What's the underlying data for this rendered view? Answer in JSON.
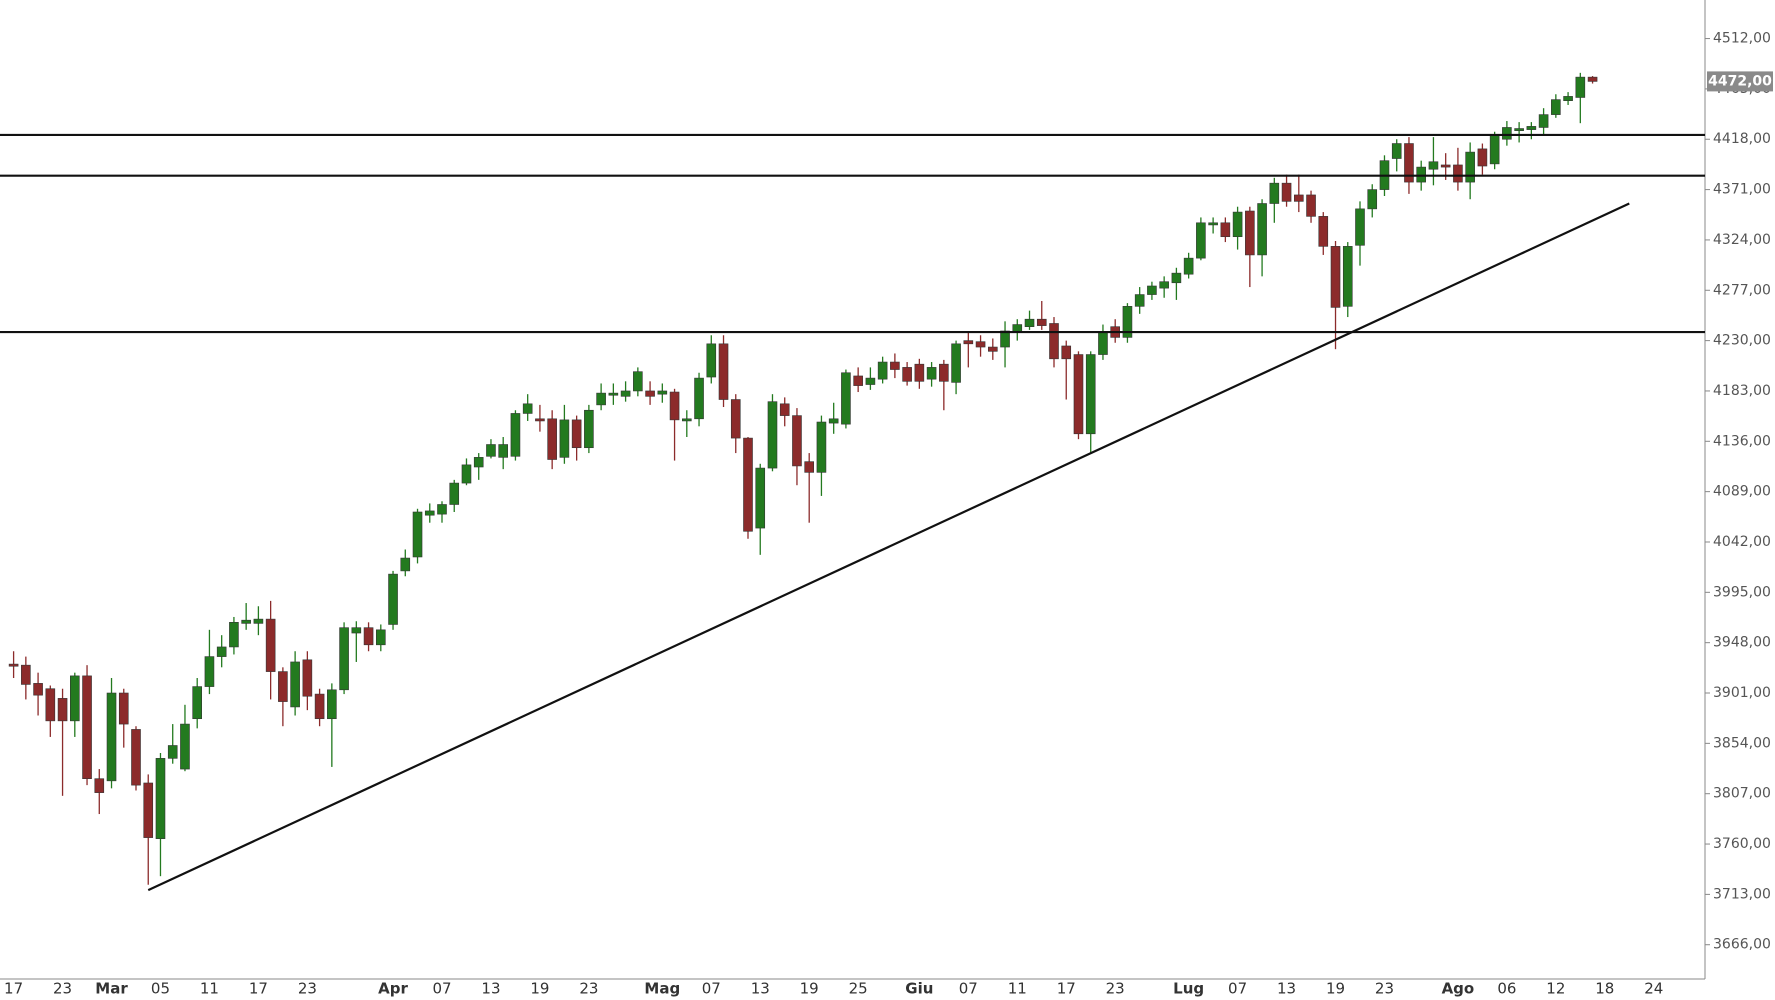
{
  "chart_data": {
    "type": "candlestick",
    "categories": [
      "17",
      null,
      null,
      null,
      "23",
      null,
      null,
      null,
      "Mar",
      null,
      null,
      null,
      "05",
      null,
      null,
      null,
      "11",
      null,
      null,
      null,
      "17",
      null,
      null,
      null,
      "23",
      null,
      null,
      null,
      null,
      null,
      null,
      "Apr",
      null,
      null,
      null,
      "07",
      null,
      null,
      null,
      "13",
      null,
      null,
      null,
      "19",
      null,
      null,
      null,
      "23",
      null,
      null,
      null,
      null,
      null,
      "Mag",
      null,
      null,
      null,
      "07",
      null,
      null,
      null,
      "13",
      null,
      null,
      null,
      "19",
      null,
      null,
      null,
      "25",
      null,
      null,
      null,
      null,
      "Giu",
      null,
      null,
      null,
      "07",
      null,
      null,
      null,
      "11",
      null,
      null,
      null,
      "17",
      null,
      null,
      null,
      "23",
      null,
      null,
      null,
      null,
      null,
      "Lug",
      null,
      null,
      null,
      "07",
      null,
      null,
      null,
      "13",
      null,
      null,
      null,
      "19",
      null,
      null,
      null,
      "23",
      null,
      null,
      null,
      null,
      null,
      "Ago",
      null,
      null,
      null,
      "06",
      null,
      null,
      null,
      "12",
      null,
      null,
      null,
      "18",
      null,
      null,
      null,
      "24"
    ],
    "open": [
      3928,
      3927,
      3910,
      3905,
      3896,
      3875,
      3917,
      3821,
      3819,
      3901,
      3867,
      3817,
      3765,
      3840,
      3830,
      3877,
      3907,
      3935,
      3944,
      3966,
      3966,
      3970,
      3921,
      3888,
      3932,
      3900,
      3877,
      3904,
      3957,
      3962,
      3946,
      3965,
      4015,
      4028,
      4067,
      4068,
      4077,
      4097,
      4112,
      4122,
      4121,
      4122,
      4162,
      4157,
      4157,
      4121,
      4156,
      4130,
      4170,
      4179,
      4178,
      4183,
      4183,
      4180,
      4182,
      4155,
      4157,
      4196,
      4227,
      4175,
      4139,
      4055,
      4111,
      4171,
      4160,
      4117,
      4107,
      4153,
      4152,
      4197,
      4189,
      4194,
      4210,
      4205,
      4208,
      4194,
      4208,
      4191,
      4230,
      4229,
      4224,
      4224,
      4238,
      4243,
      4250,
      4246,
      4225,
      4217,
      4143,
      4217,
      4243,
      4233,
      4262,
      4273,
      4279,
      4284,
      4292,
      4307,
      4338,
      4340,
      4327,
      4351,
      4310,
      4358,
      4377,
      4366,
      4366,
      4346,
      4318,
      4262,
      4319,
      4353,
      4371,
      4400,
      4414,
      4378,
      4390,
      4394,
      4394,
      4378,
      4409,
      4395,
      4418,
      4426,
      4427,
      4429,
      4441,
      4454,
      4457,
      4476,
      null,
      null,
      null,
      null,
      null
    ],
    "high": [
      3940,
      3935,
      3920,
      3908,
      3905,
      3920,
      3927,
      3830,
      3915,
      3905,
      3870,
      3825,
      3845,
      3872,
      3890,
      3915,
      3960,
      3955,
      3972,
      3985,
      3982,
      3987,
      3925,
      3940,
      3940,
      3905,
      3910,
      3967,
      3968,
      3967,
      3965,
      4015,
      4035,
      4073,
      4078,
      4080,
      4100,
      4120,
      4125,
      4138,
      4140,
      4165,
      4180,
      4170,
      4165,
      4170,
      4160,
      4170,
      4190,
      4190,
      4192,
      4205,
      4192,
      4190,
      4185,
      4165,
      4200,
      4235,
      4235,
      4180,
      4140,
      4115,
      4180,
      4177,
      4167,
      4125,
      4160,
      4172,
      4203,
      4205,
      4205,
      4215,
      4218,
      4210,
      4213,
      4210,
      4212,
      4230,
      4238,
      4235,
      4232,
      4248,
      4250,
      4258,
      4267,
      4252,
      4230,
      4220,
      4220,
      4245,
      4250,
      4265,
      4280,
      4285,
      4290,
      4298,
      4312,
      4345,
      4345,
      4345,
      4355,
      4355,
      4362,
      4382,
      4385,
      4385,
      4370,
      4350,
      4323,
      4322,
      4360,
      4376,
      4403,
      4418,
      4420,
      4398,
      4420,
      4405,
      4410,
      4415,
      4414,
      4425,
      4435,
      4434,
      4434,
      4447,
      4460,
      4462,
      4480,
      4477,
      null,
      null,
      null,
      null,
      null
    ],
    "low": [
      3915,
      3895,
      3880,
      3860,
      3805,
      3860,
      3815,
      3788,
      3812,
      3850,
      3810,
      3722,
      3730,
      3835,
      3828,
      3868,
      3900,
      3925,
      3937,
      3960,
      3955,
      3895,
      3870,
      3880,
      3885,
      3870,
      3832,
      3900,
      3930,
      3940,
      3940,
      3960,
      4010,
      4022,
      4060,
      4060,
      4070,
      4095,
      4100,
      4120,
      4110,
      4118,
      4155,
      4145,
      4110,
      4115,
      4118,
      4125,
      4165,
      4170,
      4173,
      4178,
      4170,
      4172,
      4118,
      4140,
      4150,
      4190,
      4168,
      4125,
      4045,
      4030,
      4108,
      4150,
      4095,
      4060,
      4085,
      4143,
      4148,
      4182,
      4184,
      4190,
      4195,
      4188,
      4185,
      4187,
      4165,
      4180,
      4205,
      4215,
      4212,
      4205,
      4230,
      4240,
      4240,
      4205,
      4175,
      4138,
      4125,
      4212,
      4228,
      4228,
      4255,
      4268,
      4270,
      4268,
      4288,
      4305,
      4330,
      4322,
      4315,
      4280,
      4290,
      4340,
      4355,
      4350,
      4340,
      4310,
      4222,
      4252,
      4300,
      4345,
      4365,
      4388,
      4367,
      4370,
      4375,
      4380,
      4370,
      4362,
      4385,
      4390,
      4412,
      4415,
      4418,
      4422,
      4438,
      4450,
      4433,
      4470,
      null,
      null,
      null,
      null,
      null
    ],
    "close": [
      3926,
      3909,
      3899,
      3875,
      3875,
      3917,
      3821,
      3808,
      3901,
      3872,
      3815,
      3766,
      3840,
      3852,
      3872,
      3907,
      3935,
      3944,
      3967,
      3969,
      3970,
      3921,
      3893,
      3930,
      3898,
      3877,
      3904,
      3962,
      3962,
      3946,
      3960,
      4012,
      4027,
      4070,
      4071,
      4077,
      4097,
      4114,
      4121,
      4133,
      4133,
      4162,
      4171,
      4155,
      4119,
      4156,
      4130,
      4165,
      4181,
      4181,
      4183,
      4201,
      4178,
      4183,
      4156,
      4157,
      4195,
      4227,
      4175,
      4139,
      4052,
      4111,
      4173,
      4160,
      4113,
      4107,
      4154,
      4157,
      4200,
      4188,
      4195,
      4210,
      4203,
      4192,
      4192,
      4205,
      4192,
      4227,
      4227,
      4224,
      4220,
      4239,
      4245,
      4250,
      4244,
      4213,
      4213,
      4143,
      4217,
      4238,
      4233,
      4262,
      4273,
      4281,
      4285,
      4293,
      4307,
      4340,
      4340,
      4327,
      4350,
      4310,
      4358,
      4377,
      4360,
      4360,
      4346,
      4318,
      4261,
      4318,
      4353,
      4371,
      4398,
      4414,
      4378,
      4392,
      4397,
      4392,
      4378,
      4406,
      4393,
      4422,
      4429,
      4428,
      4430,
      4441,
      4455,
      4458,
      4476,
      4472,
      null,
      null,
      null,
      null,
      null
    ],
    "up_color": "#237a1f",
    "down_color": "#8c2b2b",
    "ylim": [
      3634,
      4548
    ],
    "yticks": [
      {
        "value": 3666,
        "label": "3666,00"
      },
      {
        "value": 3713,
        "label": "3713,00"
      },
      {
        "value": 3760,
        "label": "3760,00"
      },
      {
        "value": 3807,
        "label": "3807,00"
      },
      {
        "value": 3854,
        "label": "3854,00"
      },
      {
        "value": 3901,
        "label": "3901,00"
      },
      {
        "value": 3948,
        "label": "3948,00"
      },
      {
        "value": 3995,
        "label": "3995,00"
      },
      {
        "value": 4042,
        "label": "4042,00"
      },
      {
        "value": 4089,
        "label": "4089,00"
      },
      {
        "value": 4136,
        "label": "4136,00"
      },
      {
        "value": 4183,
        "label": "4183,00"
      },
      {
        "value": 4230,
        "label": "4230,00"
      },
      {
        "value": 4277,
        "label": "4277,00"
      },
      {
        "value": 4324,
        "label": "4324,00"
      },
      {
        "value": 4371,
        "label": "4371,00"
      },
      {
        "value": 4418,
        "label": "4418,00"
      },
      {
        "value": 4465,
        "label": "4465,00"
      },
      {
        "value": 4512,
        "label": "4512,00"
      }
    ],
    "hlines": [
      4422,
      4384,
      4238
    ],
    "trendline": {
      "x": [
        11,
        132
      ],
      "y": [
        3717,
        4358
      ]
    },
    "last_price": {
      "value": 4472,
      "label": "4472,00"
    }
  }
}
